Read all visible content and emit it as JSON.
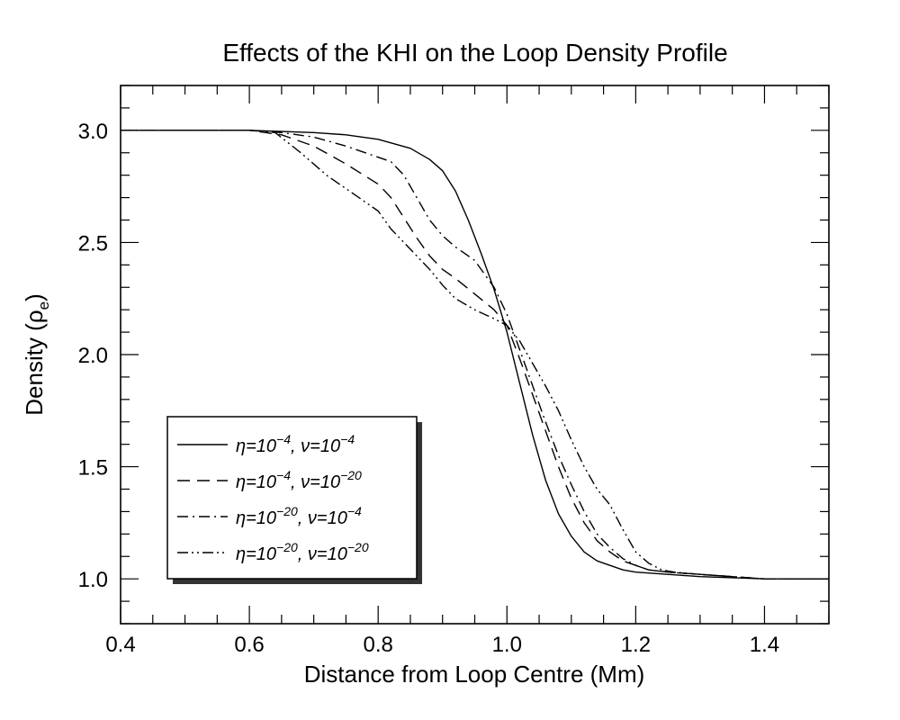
{
  "chart_data": {
    "type": "line",
    "title": "Effects of the KHI on the Loop Density Profile",
    "xlabel": "Distance from Loop Centre (Mm)",
    "ylabel": "Density (ρe)",
    "ylabel_main": "Density (ρ",
    "ylabel_sub": "e",
    "ylabel_close": ")",
    "xlim": [
      0.4,
      1.5
    ],
    "ylim": [
      0.8,
      3.2
    ],
    "xticks": [
      0.4,
      0.6,
      0.8,
      1.0,
      1.2,
      1.4
    ],
    "xtick_labels": [
      "0.4",
      "0.6",
      "0.8",
      "1.0",
      "1.2",
      "1.4"
    ],
    "yticks": [
      1.0,
      1.5,
      2.0,
      2.5,
      3.0
    ],
    "ytick_labels": [
      "1.0",
      "1.5",
      "2.0",
      "2.5",
      "3.0"
    ],
    "grid": false,
    "legend_position": "bottom-left",
    "series": [
      {
        "name": "η=10⁻⁴, ν=10⁻⁴",
        "eta_exp": "−4",
        "nu_exp": "−4",
        "style": "solid",
        "x": [
          0.4,
          0.6,
          0.7,
          0.75,
          0.8,
          0.85,
          0.88,
          0.9,
          0.92,
          0.94,
          0.96,
          0.98,
          1.0,
          1.02,
          1.04,
          1.06,
          1.08,
          1.1,
          1.12,
          1.14,
          1.16,
          1.18,
          1.2,
          1.25,
          1.3,
          1.4,
          1.5
        ],
        "y": [
          3.0,
          3.0,
          2.99,
          2.98,
          2.96,
          2.92,
          2.87,
          2.82,
          2.73,
          2.6,
          2.45,
          2.29,
          2.1,
          1.87,
          1.64,
          1.44,
          1.29,
          1.19,
          1.12,
          1.08,
          1.06,
          1.04,
          1.03,
          1.02,
          1.01,
          1.0,
          1.0
        ]
      },
      {
        "name": "η=10⁻⁴, ν=10⁻²⁰",
        "eta_exp": "−4",
        "nu_exp": "−20",
        "style": "dashed",
        "x": [
          0.4,
          0.6,
          0.65,
          0.7,
          0.75,
          0.8,
          0.82,
          0.84,
          0.86,
          0.88,
          0.9,
          0.92,
          0.95,
          0.98,
          1.0,
          1.02,
          1.04,
          1.06,
          1.08,
          1.1,
          1.12,
          1.14,
          1.16,
          1.18,
          1.2,
          1.22,
          1.25,
          1.3,
          1.4,
          1.5
        ],
        "y": [
          3.0,
          3.0,
          2.98,
          2.93,
          2.85,
          2.76,
          2.7,
          2.61,
          2.52,
          2.44,
          2.38,
          2.34,
          2.27,
          2.2,
          2.13,
          1.98,
          1.82,
          1.66,
          1.5,
          1.36,
          1.25,
          1.17,
          1.12,
          1.08,
          1.06,
          1.04,
          1.03,
          1.02,
          1.0,
          1.0
        ]
      },
      {
        "name": "η=10⁻²⁰, ν=10⁻⁴",
        "eta_exp": "−20",
        "nu_exp": "−4",
        "style": "dashdot",
        "x": [
          0.4,
          0.6,
          0.65,
          0.7,
          0.75,
          0.8,
          0.82,
          0.84,
          0.86,
          0.88,
          0.9,
          0.92,
          0.95,
          0.98,
          1.0,
          1.02,
          1.04,
          1.06,
          1.08,
          1.1,
          1.12,
          1.14,
          1.16,
          1.18,
          1.2,
          1.22,
          1.25,
          1.3,
          1.4,
          1.5
        ],
        "y": [
          3.0,
          3.0,
          2.99,
          2.97,
          2.93,
          2.88,
          2.86,
          2.8,
          2.7,
          2.6,
          2.53,
          2.48,
          2.42,
          2.3,
          2.18,
          2.02,
          1.86,
          1.7,
          1.55,
          1.42,
          1.3,
          1.2,
          1.14,
          1.09,
          1.06,
          1.04,
          1.03,
          1.02,
          1.0,
          1.0
        ]
      },
      {
        "name": "η=10⁻²⁰, ν=10⁻²⁰",
        "eta_exp": "−20",
        "nu_exp": "−20",
        "style": "dashdotdot",
        "x": [
          0.4,
          0.6,
          0.64,
          0.68,
          0.72,
          0.76,
          0.8,
          0.82,
          0.84,
          0.86,
          0.88,
          0.9,
          0.92,
          0.95,
          0.98,
          1.0,
          1.02,
          1.04,
          1.06,
          1.08,
          1.1,
          1.12,
          1.14,
          1.16,
          1.18,
          1.2,
          1.22,
          1.24,
          1.26,
          1.3,
          1.4,
          1.5
        ],
        "y": [
          3.0,
          3.0,
          2.99,
          2.9,
          2.8,
          2.72,
          2.64,
          2.56,
          2.5,
          2.44,
          2.38,
          2.31,
          2.25,
          2.2,
          2.16,
          2.13,
          2.06,
          1.96,
          1.86,
          1.75,
          1.62,
          1.5,
          1.4,
          1.33,
          1.22,
          1.12,
          1.07,
          1.04,
          1.03,
          1.02,
          1.0,
          1.0
        ]
      }
    ]
  }
}
